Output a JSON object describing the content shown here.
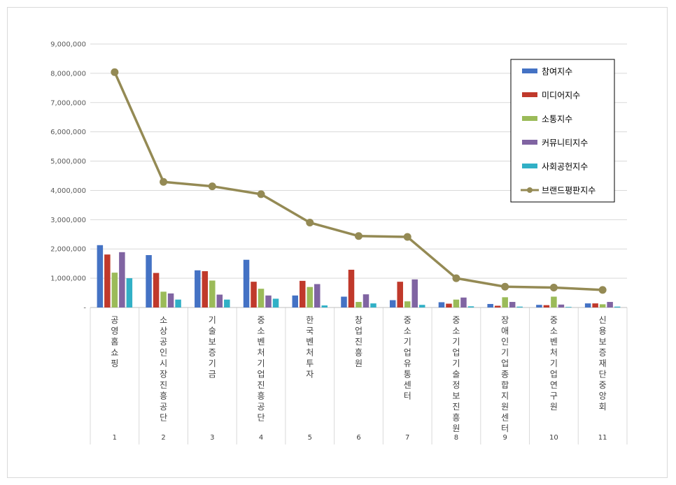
{
  "chart_data": {
    "type": "bar",
    "title": "",
    "xlabel": "",
    "ylabel": "",
    "ylim": [
      0,
      9000000
    ],
    "yticks": [
      {
        "value": 0,
        "label": "-"
      },
      {
        "value": 1000000,
        "label": "1,000,000"
      },
      {
        "value": 2000000,
        "label": "2,000,000"
      },
      {
        "value": 3000000,
        "label": "3,000,000"
      },
      {
        "value": 4000000,
        "label": "4,000,000"
      },
      {
        "value": 5000000,
        "label": "5,000,000"
      },
      {
        "value": 6000000,
        "label": "6,000,000"
      },
      {
        "value": 7000000,
        "label": "7,000,000"
      },
      {
        "value": 8000000,
        "label": "8,000,000"
      },
      {
        "value": 9000000,
        "label": "9,000,000"
      }
    ],
    "grid": true,
    "legend_position": "top-right",
    "categories": [
      "공영홈쇼핑",
      "소상공인시장진흥공단",
      "기술보증기금",
      "중소벤처기업진흥공단",
      "한국벤처투자",
      "창업진흥원",
      "중소기업유통센터",
      "중소기업기술정보진흥원",
      "장애인기업종합지원센터",
      "중소벤처기업연구원",
      "신용보증재단중앙회"
    ],
    "ranks": [
      "1",
      "2",
      "3",
      "4",
      "5",
      "6",
      "7",
      "8",
      "9",
      "10",
      "11"
    ],
    "series": [
      {
        "name": "참여지수",
        "kind": "bar",
        "color": "#4472c4",
        "values": [
          2130000,
          1790000,
          1270000,
          1630000,
          410000,
          370000,
          250000,
          180000,
          120000,
          90000,
          140000
        ]
      },
      {
        "name": "미디어지수",
        "kind": "bar",
        "color": "#c0392b",
        "values": [
          1810000,
          1180000,
          1240000,
          880000,
          910000,
          1290000,
          880000,
          130000,
          60000,
          80000,
          140000
        ]
      },
      {
        "name": "소통지수",
        "kind": "bar",
        "color": "#9bbb59",
        "values": [
          1190000,
          540000,
          920000,
          640000,
          700000,
          190000,
          210000,
          270000,
          350000,
          370000,
          110000
        ]
      },
      {
        "name": "커뮤니티지수",
        "kind": "bar",
        "color": "#8064a2",
        "values": [
          1890000,
          480000,
          440000,
          410000,
          800000,
          450000,
          960000,
          340000,
          190000,
          100000,
          190000
        ]
      },
      {
        "name": "사회공헌지수",
        "kind": "bar",
        "color": "#31b0c6",
        "values": [
          1000000,
          270000,
          270000,
          300000,
          70000,
          140000,
          90000,
          40000,
          30000,
          20000,
          30000
        ]
      },
      {
        "name": "브랜드평판지수",
        "kind": "line",
        "color": "#948a54",
        "values": [
          8040000,
          4290000,
          4140000,
          3870000,
          2900000,
          2440000,
          2410000,
          1000000,
          710000,
          680000,
          600000
        ]
      }
    ]
  }
}
